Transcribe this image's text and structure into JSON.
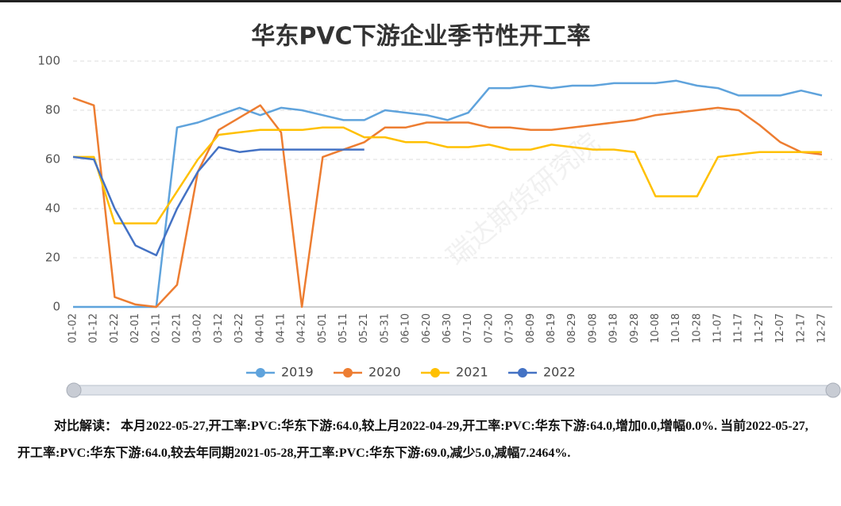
{
  "chart_data": {
    "type": "line",
    "title": "华东PVC下游企业季节性开工率",
    "watermark": "瑞达期货研究院",
    "categories": [
      "01-02",
      "01-12",
      "01-22",
      "02-01",
      "02-11",
      "02-21",
      "03-02",
      "03-12",
      "03-22",
      "04-01",
      "04-11",
      "04-21",
      "05-01",
      "05-11",
      "05-21",
      "05-31",
      "06-10",
      "06-20",
      "06-30",
      "07-10",
      "07-20",
      "07-30",
      "08-09",
      "08-19",
      "08-29",
      "09-08",
      "09-18",
      "09-28",
      "10-08",
      "10-18",
      "10-28",
      "11-07",
      "11-17",
      "11-27",
      "12-07",
      "12-17",
      "12-27"
    ],
    "series": [
      {
        "name": "2019",
        "color": "#5fa3dc",
        "values": [
          0,
          0,
          0,
          0,
          0,
          73,
          75,
          78,
          81,
          78,
          81,
          80,
          78,
          76,
          76,
          80,
          79,
          78,
          76,
          79,
          89,
          89,
          90,
          89,
          90,
          90,
          91,
          91,
          91,
          92,
          90,
          89,
          86,
          86,
          86,
          88,
          86
        ]
      },
      {
        "name": "2020",
        "color": "#ed7d31",
        "values": [
          85,
          82,
          4,
          1,
          0,
          9,
          55,
          72,
          77,
          82,
          71,
          0,
          61,
          64,
          67,
          73,
          73,
          75,
          75,
          75,
          73,
          73,
          72,
          72,
          73,
          74,
          75,
          76,
          78,
          79,
          80,
          81,
          80,
          74,
          67,
          63,
          62
        ]
      },
      {
        "name": "2021",
        "color": "#ffc000",
        "values": [
          61,
          61,
          34,
          34,
          34,
          47,
          60,
          70,
          71,
          72,
          72,
          72,
          73,
          73,
          69,
          69,
          67,
          67,
          65,
          65,
          66,
          64,
          64,
          66,
          65,
          64,
          64,
          63,
          45,
          45,
          45,
          61,
          62,
          63,
          63,
          63,
          63
        ]
      },
      {
        "name": "2022",
        "color": "#4472c4",
        "values": [
          61,
          60,
          40,
          25,
          21,
          40,
          55,
          65,
          63,
          64,
          64,
          64,
          64,
          64,
          64,
          null,
          null,
          null,
          null,
          null,
          null,
          null,
          null,
          null,
          null,
          null,
          null,
          null,
          null,
          null,
          null,
          null,
          null,
          null,
          null,
          null,
          null
        ]
      }
    ],
    "ylim": [
      0,
      100
    ],
    "yticks": [
      0,
      20,
      40,
      60,
      80,
      100
    ],
    "grid": true,
    "commentary": {
      "label": "对比解读：",
      "text": "本月2022-05-27,开工率:PVC:华东下游:64.0,较上月2022-04-29,开工率:PVC:华东下游:64.0,增加0.0,增幅0.0%. 当前2022-05-27,开工率:PVC:华东下游:64.0,较去年同期2021-05-28,开工率:PVC:华东下游:69.0,减少5.0,减幅7.2464%."
    }
  }
}
